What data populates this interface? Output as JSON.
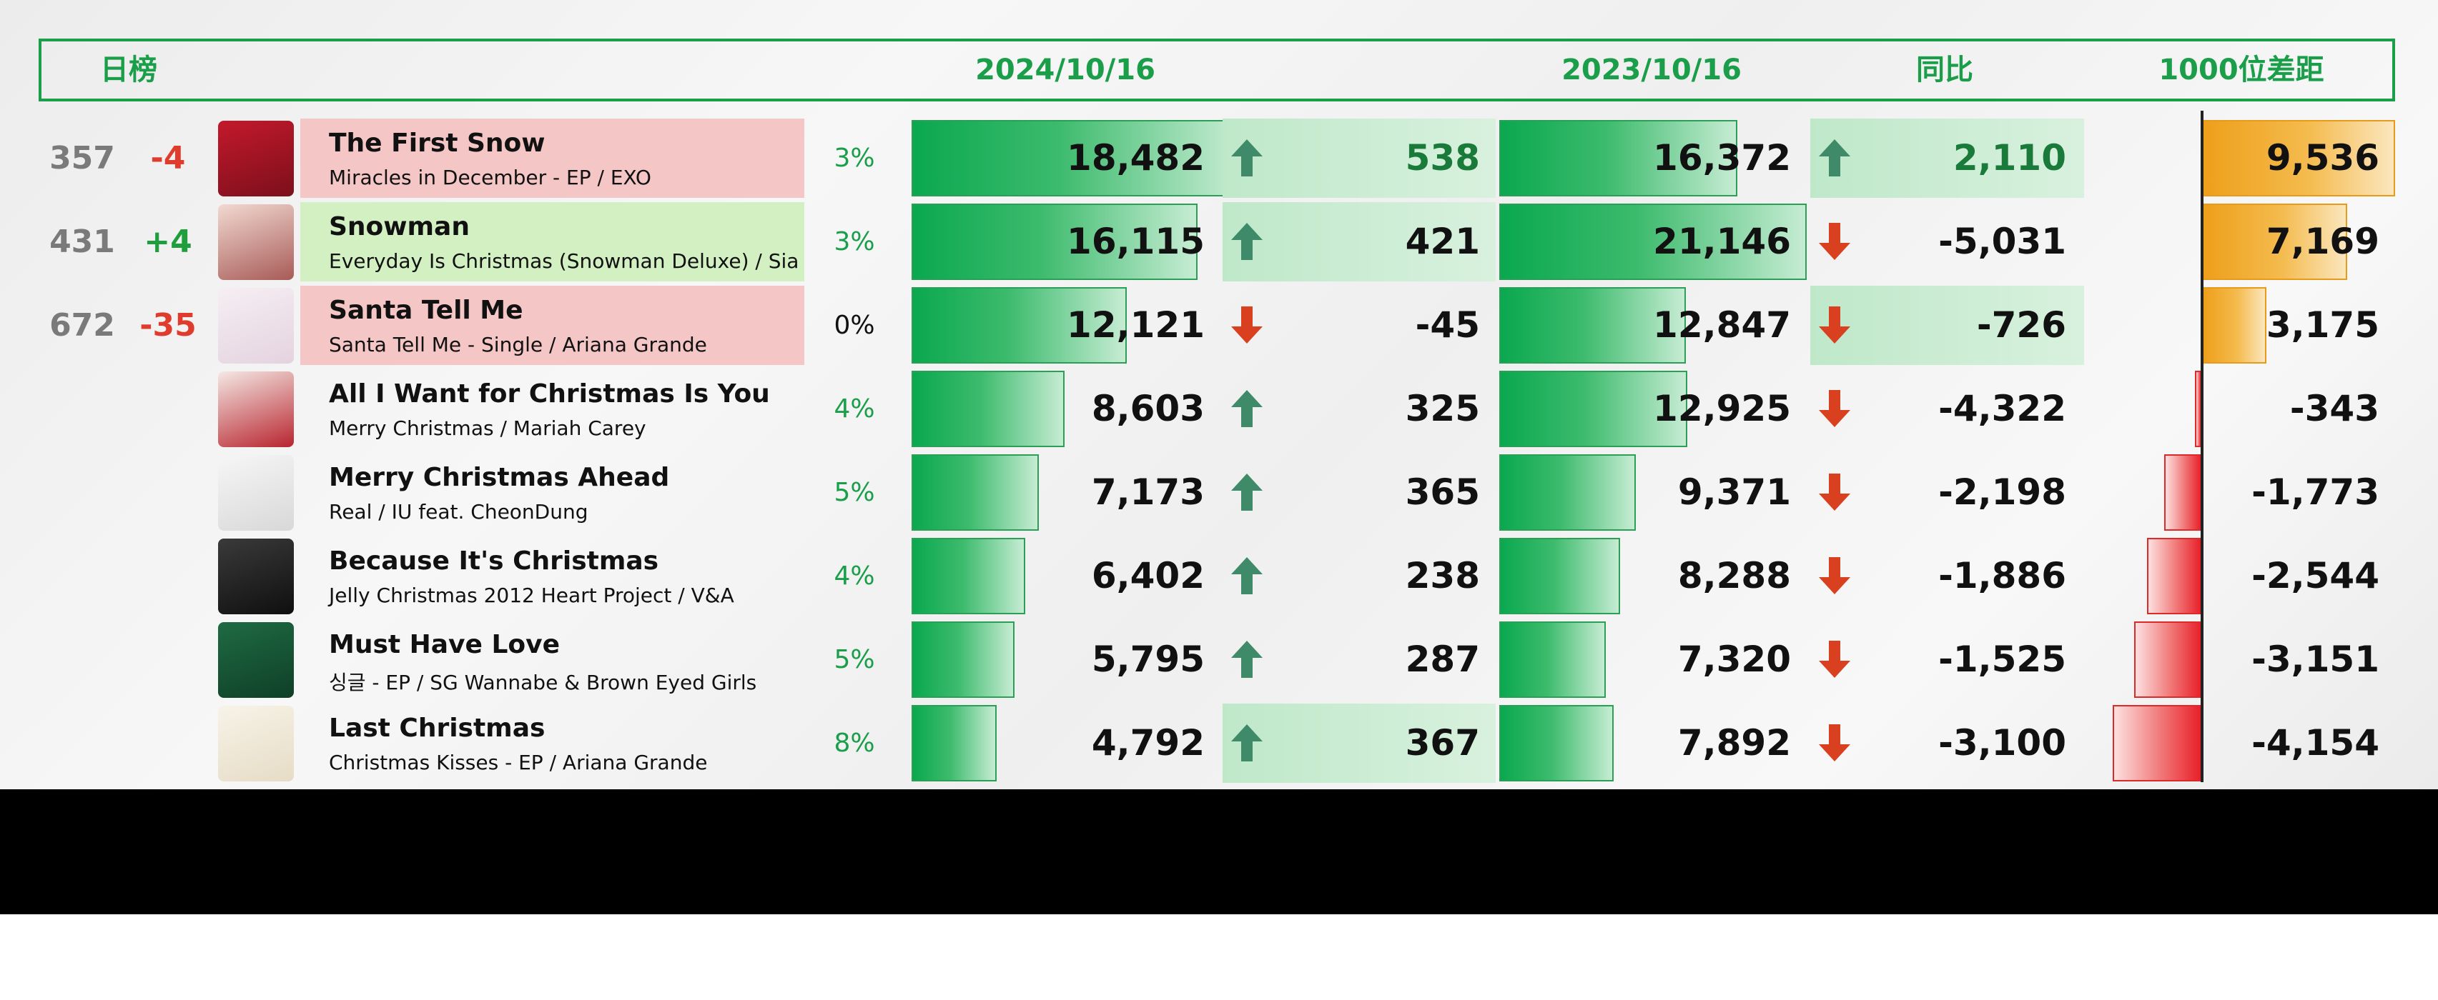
{
  "header": {
    "label": "日榜",
    "col_date_current": "2024/10/16",
    "col_date_previous": "2023/10/16",
    "col_yoy": "同比",
    "col_gap": "1000位差距"
  },
  "colors": {
    "accent_green": "#1a9e4a",
    "up_red": "#e03c2e",
    "down_green": "#1f9e3e",
    "rank_gray": "#7a7a7a",
    "hl_pink": "#f5c6c6",
    "hl_light_green": "#d2f0c2",
    "hl_green": "#bfe8c9"
  },
  "rows": [
    {
      "rank": "357",
      "change": "-4",
      "change_dir": "down",
      "cover_icon": "christmas-tree-cover",
      "title": "The First Snow",
      "subtitle": "Miracles in December - EP / EXO",
      "highlight": "pink",
      "pct": "3%",
      "pct_color": "green",
      "current": 18482,
      "current_label": "18,482",
      "daily_dir": "up",
      "daily_label": "538",
      "daily_highlight": true,
      "daily_green_text": true,
      "previous": 16372,
      "previous_label": "16,372",
      "yoy_dir": "up",
      "yoy_label": "2,110",
      "yoy_highlight": true,
      "yoy_green_text": true,
      "gap": 9536,
      "gap_label": "9,536"
    },
    {
      "rank": "431",
      "change": "+4",
      "change_dir": "up",
      "cover_icon": "snowman-cover",
      "title": "Snowman",
      "subtitle": "Everyday Is Christmas (Snowman Deluxe) / Sia",
      "highlight": "light-green",
      "pct": "3%",
      "pct_color": "green",
      "current": 16115,
      "current_label": "16,115",
      "daily_dir": "up",
      "daily_label": "421",
      "daily_highlight": true,
      "daily_green_text": false,
      "previous": 21146,
      "previous_label": "21,146",
      "yoy_dir": "down",
      "yoy_label": "-5,031",
      "yoy_highlight": false,
      "yoy_green_text": false,
      "gap": 7169,
      "gap_label": "7,169"
    },
    {
      "rank": "672",
      "change": "-35",
      "change_dir": "down",
      "cover_icon": "santa-tell-me-cover",
      "title": "Santa Tell Me",
      "subtitle": "Santa Tell Me - Single / Ariana Grande",
      "highlight": "pink",
      "pct": "0%",
      "pct_color": "black",
      "current": 12121,
      "current_label": "12,121",
      "daily_dir": "down",
      "daily_label": "-45",
      "daily_highlight": false,
      "daily_green_text": false,
      "previous": 12847,
      "previous_label": "12,847",
      "yoy_dir": "down",
      "yoy_label": "-726",
      "yoy_highlight": true,
      "yoy_green_text": false,
      "gap": 3175,
      "gap_label": "3,175"
    },
    {
      "rank": "",
      "change": "",
      "change_dir": "none",
      "cover_icon": "mariah-carey-cover",
      "title": "All I Want for Christmas Is You",
      "subtitle": "Merry Christmas / Mariah Carey",
      "highlight": "none",
      "pct": "4%",
      "pct_color": "green",
      "current": 8603,
      "current_label": "8,603",
      "daily_dir": "up",
      "daily_label": "325",
      "daily_highlight": false,
      "daily_green_text": false,
      "previous": 12925,
      "previous_label": "12,925",
      "yoy_dir": "down",
      "yoy_label": "-4,322",
      "yoy_highlight": false,
      "yoy_green_text": false,
      "gap": -343,
      "gap_label": "-343"
    },
    {
      "rank": "",
      "change": "",
      "change_dir": "none",
      "cover_icon": "iu-cover",
      "title": "Merry Christmas Ahead",
      "subtitle": "Real / IU feat. CheonDung",
      "highlight": "none",
      "pct": "5%",
      "pct_color": "green",
      "current": 7173,
      "current_label": "7,173",
      "daily_dir": "up",
      "daily_label": "365",
      "daily_highlight": false,
      "daily_green_text": false,
      "previous": 9371,
      "previous_label": "9,371",
      "yoy_dir": "down",
      "yoy_label": "-2,198",
      "yoy_highlight": false,
      "yoy_green_text": false,
      "gap": -1773,
      "gap_label": "-1,773"
    },
    {
      "rank": "",
      "change": "",
      "change_dir": "none",
      "cover_icon": "group-photo-cover",
      "title": "Because It's Christmas",
      "subtitle": "Jelly Christmas 2012 Heart Project  / V&A",
      "highlight": "none",
      "pct": "4%",
      "pct_color": "green",
      "current": 6402,
      "current_label": "6,402",
      "daily_dir": "up",
      "daily_label": "238",
      "daily_highlight": false,
      "daily_green_text": false,
      "previous": 8288,
      "previous_label": "8,288",
      "yoy_dir": "down",
      "yoy_label": "-1,886",
      "yoy_highlight": false,
      "yoy_green_text": false,
      "gap": -2544,
      "gap_label": "-2,544"
    },
    {
      "rank": "",
      "change": "",
      "change_dir": "none",
      "cover_icon": "green-christmas-cover",
      "title": "Must Have Love",
      "subtitle": "싱글 - EP / SG Wannabe & Brown Eyed Girls",
      "highlight": "none",
      "pct": "5%",
      "pct_color": "green",
      "current": 5795,
      "current_label": "5,795",
      "daily_dir": "up",
      "daily_label": "287",
      "daily_highlight": false,
      "daily_green_text": false,
      "previous": 7320,
      "previous_label": "7,320",
      "yoy_dir": "down",
      "yoy_label": "-1,525",
      "yoy_highlight": false,
      "yoy_green_text": false,
      "gap": -3151,
      "gap_label": "-3,151"
    },
    {
      "rank": "",
      "change": "",
      "change_dir": "none",
      "cover_icon": "christmas-kisses-cover",
      "title": "Last Christmas",
      "subtitle": "Christmas Kisses - EP / Ariana Grande",
      "highlight": "none",
      "pct": "8%",
      "pct_color": "green",
      "current": 4792,
      "current_label": "4,792",
      "daily_dir": "up",
      "daily_label": "367",
      "daily_highlight": true,
      "daily_green_text": false,
      "previous": 7892,
      "previous_label": "7,892",
      "yoy_dir": "down",
      "yoy_label": "-3,100",
      "yoy_highlight": false,
      "yoy_green_text": false,
      "gap": -4154,
      "gap_label": "-4,154"
    }
  ],
  "scales": {
    "stream_max": 21146,
    "gap_max": 9536
  }
}
